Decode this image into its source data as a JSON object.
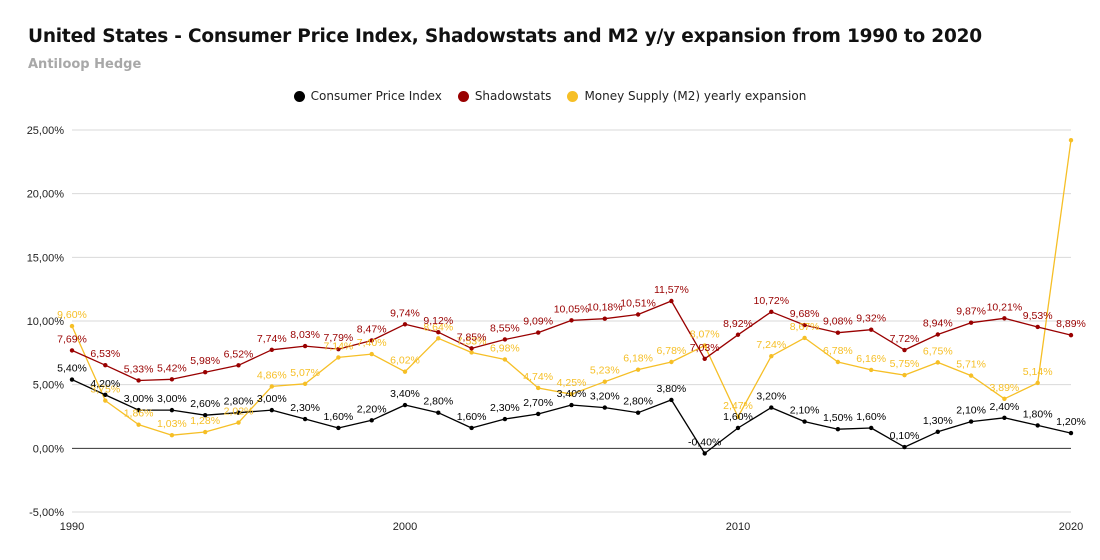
{
  "header": {
    "title": "United States - Consumer Price Index, Shadowstats and M2 y/y expansion from 1990 to 2020",
    "subtitle": "Antiloop Hedge"
  },
  "colors": {
    "cpi": "#000000",
    "shadowstats": "#990000",
    "m2": "#f6bf26",
    "grid": "#d9d9d9",
    "zero_line": "#333333",
    "axis_text": "#222222"
  },
  "chart_data": {
    "type": "line",
    "title": "United States - Consumer Price Index, Shadowstats and M2 y/y expansion from 1990 to 2020",
    "subtitle": "Antiloop Hedge",
    "legend_position": "top",
    "grid": true,
    "x": [
      1990,
      1991,
      1992,
      1993,
      1994,
      1995,
      1996,
      1997,
      1998,
      1999,
      2000,
      2001,
      2002,
      2003,
      2004,
      2005,
      2006,
      2007,
      2008,
      2009,
      2010,
      2011,
      2012,
      2013,
      2014,
      2015,
      2016,
      2017,
      2018,
      2019,
      2020
    ],
    "x_ticks": [
      "1990",
      "2000",
      "2010",
      "2020"
    ],
    "y_ticks": [
      "25,00%",
      "20,00%",
      "15,00%",
      "10,00%",
      "5,00%",
      "0,00%",
      "-5,00%"
    ],
    "ylim": [
      -5,
      25
    ],
    "series": [
      {
        "key": "cpi",
        "name": "Consumer Price Index",
        "values": [
          5.4,
          4.2,
          3.0,
          3.0,
          2.6,
          2.8,
          3.0,
          2.3,
          1.6,
          2.2,
          3.4,
          2.8,
          1.6,
          2.3,
          2.7,
          3.4,
          3.2,
          2.8,
          3.8,
          -0.4,
          1.6,
          3.2,
          2.1,
          1.5,
          1.6,
          0.1,
          1.3,
          2.1,
          2.4,
          1.8,
          1.2
        ],
        "labels": [
          "5,40%",
          "4,20%",
          "3,00%",
          "3,00%",
          "2,60%",
          "2,80%",
          "3,00%",
          "2,30%",
          "1,60%",
          "2,20%",
          "3,40%",
          "2,80%",
          "1,60%",
          "2,30%",
          "2,70%",
          "3,40%",
          "3,20%",
          "2,80%",
          "3,80%",
          "-0,40%",
          "1,60%",
          "3,20%",
          "2,10%",
          "1,50%",
          "1,60%",
          "0,10%",
          "1,30%",
          "2,10%",
          "2,40%",
          "1,80%",
          "1,20%"
        ]
      },
      {
        "key": "shadowstats",
        "name": "Shadowstats",
        "values": [
          7.69,
          6.53,
          5.33,
          5.42,
          5.98,
          6.52,
          7.74,
          8.03,
          7.79,
          8.47,
          9.74,
          9.12,
          7.85,
          8.55,
          9.09,
          10.05,
          10.18,
          10.51,
          11.57,
          7.03,
          8.92,
          10.72,
          9.68,
          9.08,
          9.32,
          7.72,
          8.94,
          9.87,
          10.21,
          9.53,
          8.89
        ],
        "labels": [
          "7,69%",
          "6,53%",
          "5,33%",
          "5,42%",
          "5,98%",
          "6,52%",
          "7,74%",
          "8,03%",
          "7,79%",
          "8,47%",
          "9,74%",
          "9,12%",
          "7,85%",
          "8,55%",
          "9,09%",
          "10,05%",
          "10,18%",
          "10,51%",
          "11,57%",
          "7,03%",
          "8,92%",
          "10,72%",
          "9,68%",
          "9,08%",
          "9,32%",
          "7,72%",
          "8,94%",
          "9,87%",
          "10,21%",
          "9,53%",
          "8,89%"
        ]
      },
      {
        "key": "m2",
        "name": "Money Supply (M2) yearly expansion",
        "values": [
          9.6,
          3.75,
          1.86,
          1.03,
          1.28,
          2.02,
          4.86,
          5.07,
          7.14,
          7.4,
          6.02,
          8.64,
          7.53,
          6.98,
          4.74,
          4.25,
          5.23,
          6.18,
          6.78,
          8.07,
          2.47,
          7.24,
          8.67,
          6.78,
          6.16,
          5.75,
          6.75,
          5.71,
          3.89,
          5.14,
          24.2
        ],
        "labels": [
          "9,60%",
          "3,75%",
          "1,86%",
          "1,03%",
          "1,28%",
          "2,02%",
          "4,86%",
          "5,07%",
          "7,14%",
          "7,40%",
          "6,02%",
          "8,64%",
          "7,53%",
          "6,98%",
          "4,74%",
          "4,25%",
          "5,23%",
          "6,18%",
          "6,78%",
          "8,07%",
          "2,47%",
          "7,24%",
          "8,67%",
          "6,78%",
          "6,16%",
          "5,75%",
          "6,75%",
          "5,71%",
          "3,89%",
          "5,14%",
          ""
        ]
      }
    ]
  }
}
